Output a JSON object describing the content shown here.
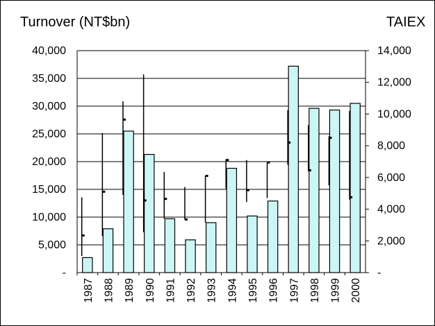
{
  "chart_data": {
    "type": "bar",
    "left_axis_label": "Turnover (NT$bn)",
    "right_axis_label": "TAIEX",
    "categories": [
      "1987",
      "1988",
      "1989",
      "1990",
      "1991",
      "1992",
      "1993",
      "1994",
      "1995",
      "1996",
      "1997",
      "1998",
      "1999",
      "2000"
    ],
    "turnover_values": [
      2700,
      7900,
      25500,
      21300,
      9700,
      5900,
      9000,
      18800,
      10200,
      12900,
      37200,
      29600,
      29300,
      30500
    ],
    "taiex_ranges": [
      {
        "high": 4750,
        "low": 1050,
        "close": 2340
      },
      {
        "high": 8800,
        "low": 2300,
        "close": 5100
      },
      {
        "high": 10800,
        "low": 4900,
        "close": 9650
      },
      {
        "high": 12500,
        "low": 2550,
        "close": 4550
      },
      {
        "high": 6350,
        "low": 3400,
        "close": 4650
      },
      {
        "high": 5400,
        "low": 3350,
        "close": 3350
      },
      {
        "high": 6100,
        "low": 3150,
        "close": 6100
      },
      {
        "high": 7150,
        "low": 5300,
        "close": 7100
      },
      {
        "high": 7100,
        "low": 4450,
        "close": 5200
      },
      {
        "high": 6950,
        "low": 4700,
        "close": 6950
      },
      {
        "high": 10250,
        "low": 6800,
        "close": 8200
      },
      {
        "high": 9300,
        "low": 6400,
        "close": 6450
      },
      {
        "high": 8600,
        "low": 5500,
        "close": 8500
      },
      {
        "high": 10200,
        "low": 4600,
        "close": 4750
      }
    ],
    "left_ticks": [
      "-",
      "5,000",
      "10,000",
      "15,000",
      "20,000",
      "25,000",
      "30,000",
      "35,000",
      "40,000"
    ],
    "right_ticks": [
      "-",
      "2,000",
      "4,000",
      "6,000",
      "8,000",
      "10,000",
      "12,000",
      "14,000"
    ],
    "left_range": [
      0,
      40000
    ],
    "right_range": [
      0,
      14000
    ],
    "bar_fill": "#ccf5f5",
    "bar_stroke": "#000000",
    "grid": true
  }
}
